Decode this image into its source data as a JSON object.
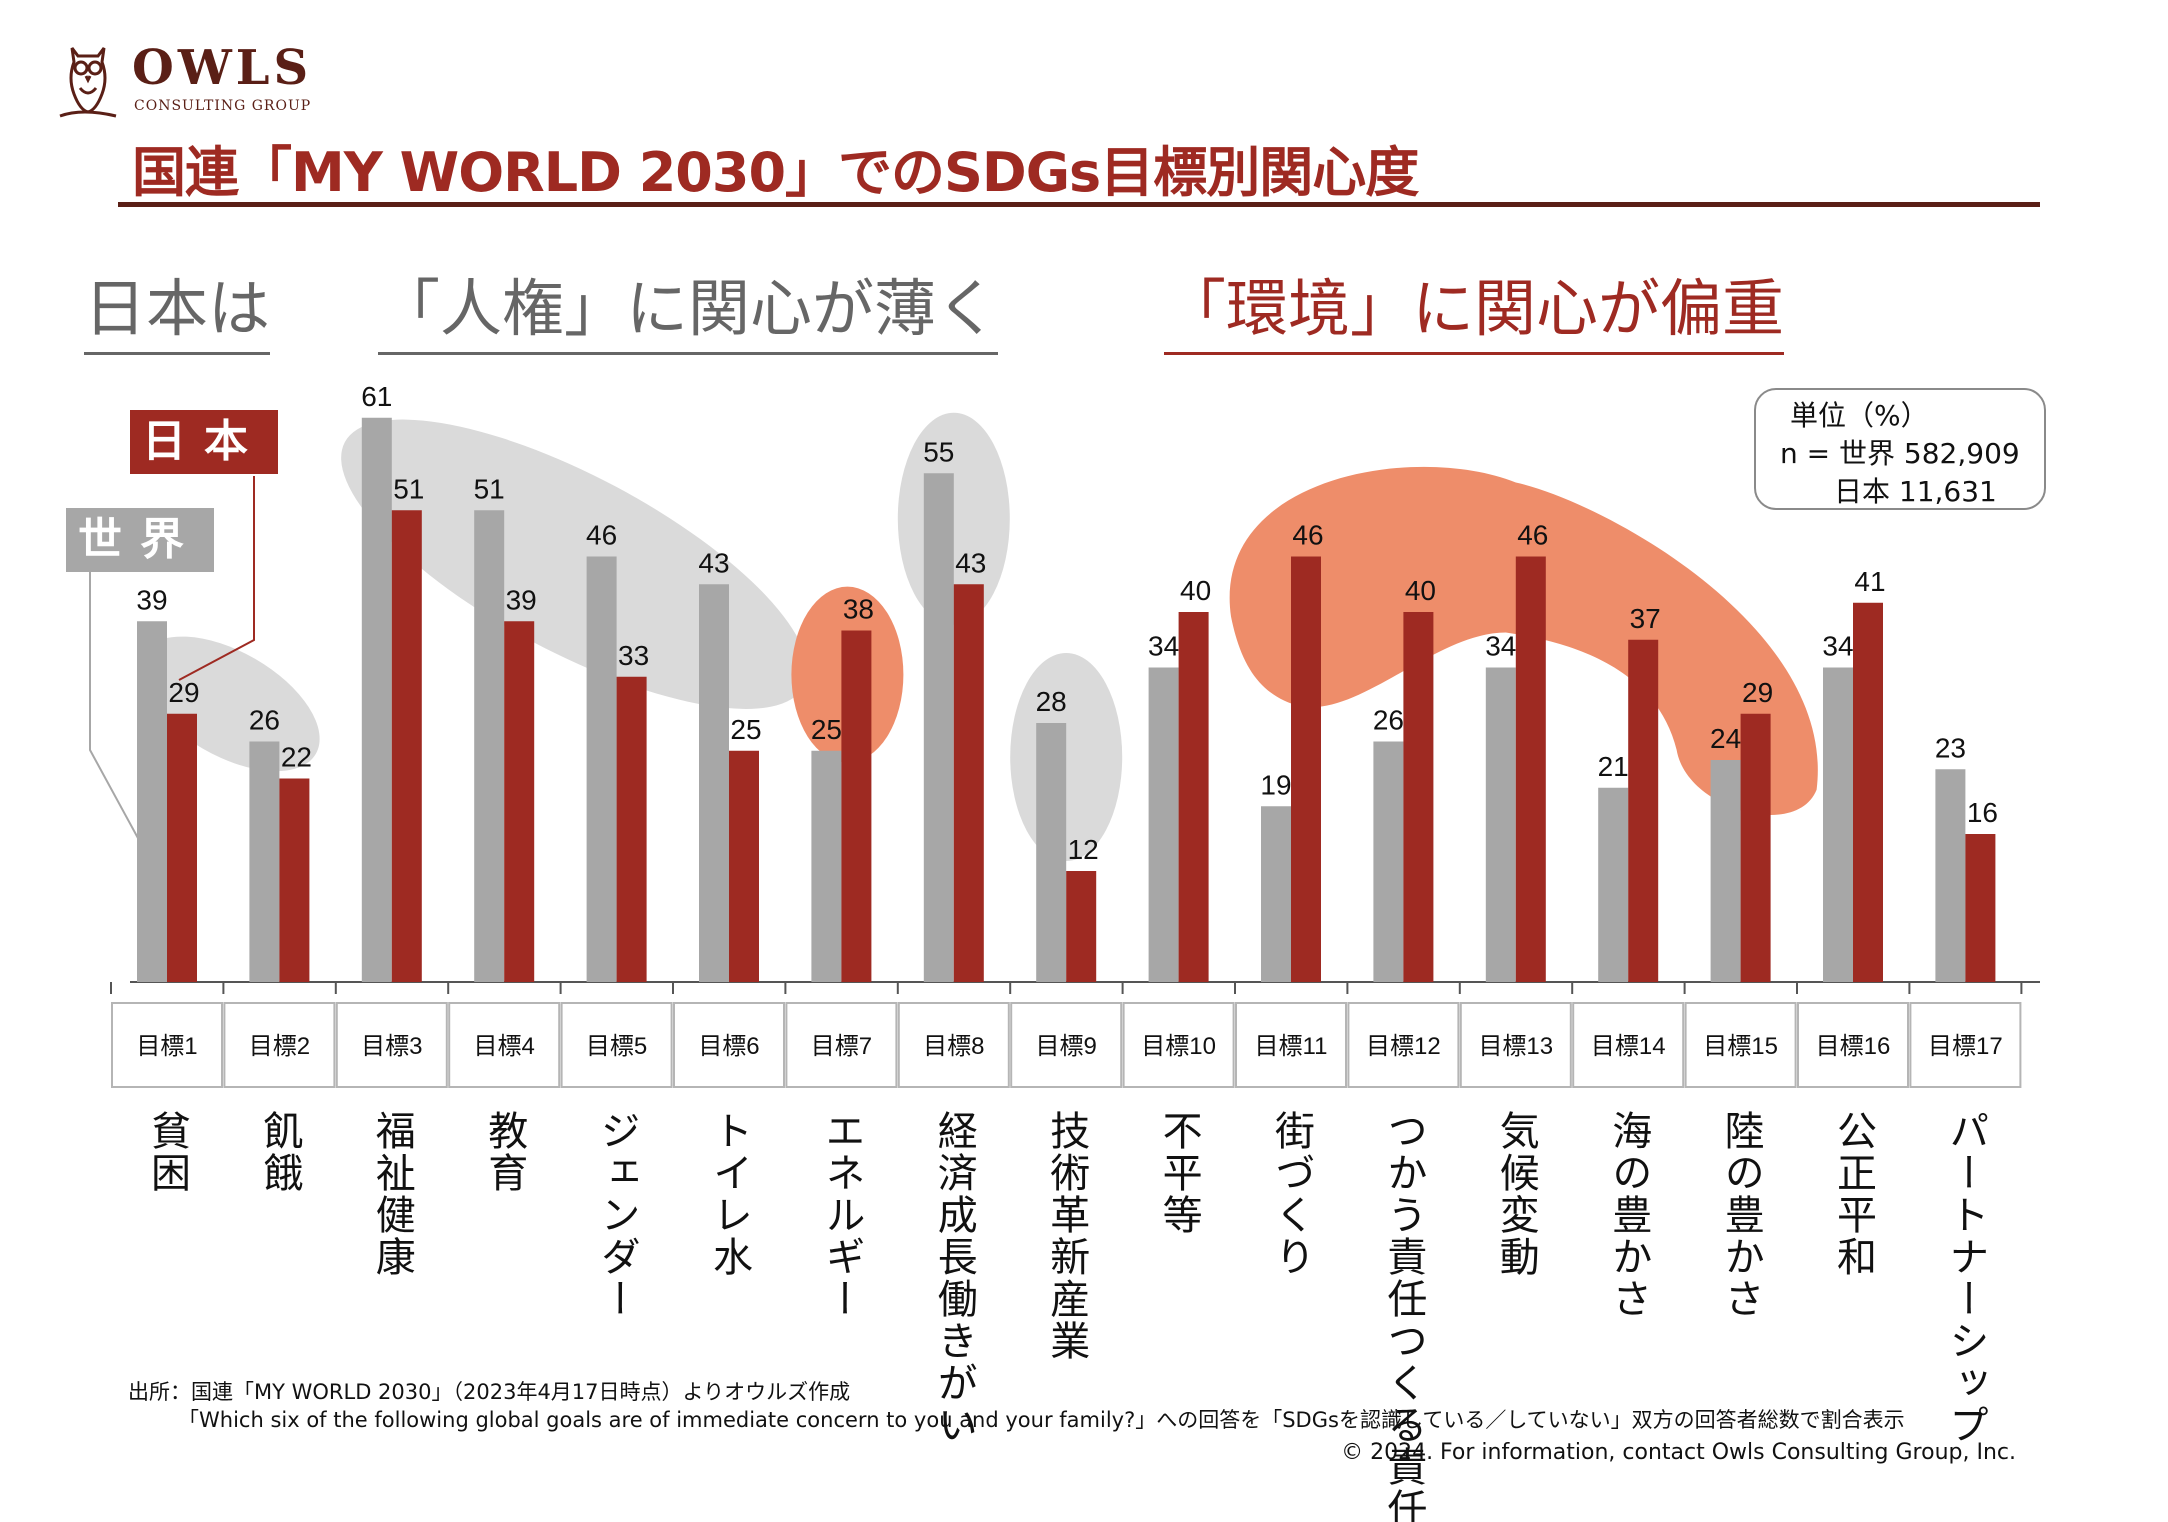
{
  "logo": {
    "name": "OWLS",
    "sub": "CONSULTING GROUP"
  },
  "title": "国連「MY WORLD 2030」でのSDGs目標別関心度",
  "headline": {
    "part1": "日本は",
    "part2": "「人権」に関心が薄く",
    "part3": "「環境」に関心が偏重"
  },
  "unit_note": {
    "line1": "単位（%）",
    "line2": "n = 世界 582,909",
    "line3": "日本 11,631"
  },
  "colors": {
    "world": "#a7a7a7",
    "japan": "#9e2a22",
    "gray_highlight": "#dadada",
    "orange_highlight": "#ee8d6a"
  },
  "chart_data": {
    "type": "bar",
    "categories": [
      "目標1",
      "目標2",
      "目標3",
      "目標4",
      "目標5",
      "目標6",
      "目標7",
      "目標8",
      "目標9",
      "目標10",
      "目標11",
      "目標12",
      "目標13",
      "目標14",
      "目標15",
      "目標16",
      "目標17"
    ],
    "category_names": [
      "貧困",
      "飢餓",
      "福祉健康",
      "教育",
      "ジェンダー",
      "トイレ水",
      "エネルギー",
      "経済成長働きがい",
      "技術革新産業",
      "不平等",
      "街づくり",
      "つかう責任つくる責任",
      "気候変動",
      "海の豊かさ",
      "陸の豊かさ",
      "公正平和",
      "パートナーシップ"
    ],
    "series": [
      {
        "name": "世界",
        "values": [
          39,
          26,
          61,
          51,
          46,
          43,
          25,
          55,
          28,
          34,
          19,
          26,
          34,
          21,
          24,
          34,
          23
        ]
      },
      {
        "name": "日本",
        "values": [
          29,
          22,
          51,
          39,
          33,
          25,
          38,
          43,
          12,
          40,
          46,
          40,
          46,
          37,
          29,
          41,
          16
        ]
      }
    ],
    "legend": [
      "日本",
      "世界"
    ],
    "highlight_gray": [
      "目標1",
      "目標2",
      "目標3",
      "目標4",
      "目標5",
      "目標6",
      "目標8",
      "目標9"
    ],
    "highlight_orange": [
      "目標7",
      "目標11",
      "目標12",
      "目標13",
      "目標14",
      "目標15"
    ],
    "ylim": [
      0,
      65
    ]
  },
  "source": {
    "line1": "出所：国連「MY WORLD 2030」（2023年4月17日時点）よりオウルズ作成",
    "line2": "「Which six of the following global goals are of immediate concern to you and your  family?」への回答を「SDGsを認識している／していない」双方の回答者総数で割合表示"
  },
  "copyright": "© 2024. For information, contact Owls Consulting Group, Inc."
}
